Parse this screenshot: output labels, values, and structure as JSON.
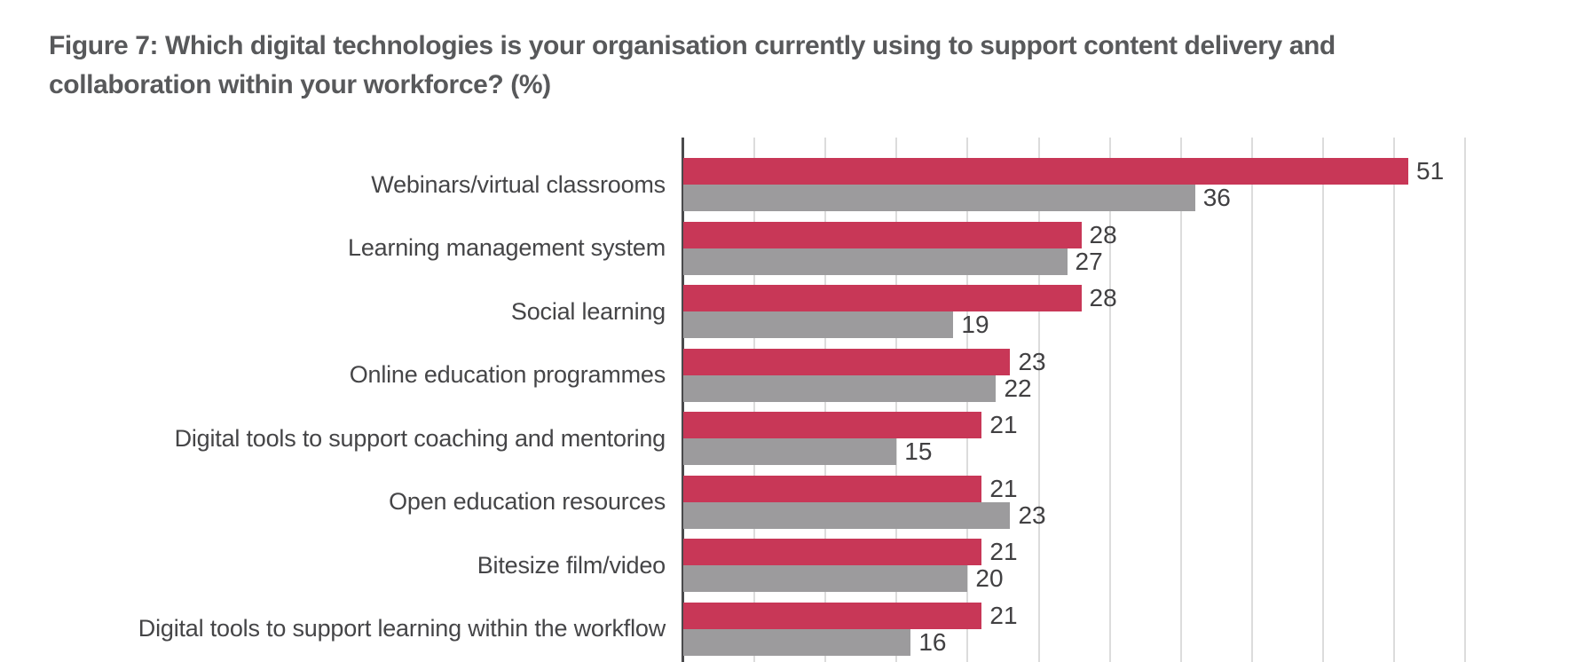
{
  "figure": {
    "title_line1": "Figure 7: Which digital technologies is your organisation currently using to support content delivery and",
    "title_line2": "collaboration within your workforce? (%)"
  },
  "chart_data": {
    "type": "bar",
    "orientation": "horizontal",
    "title": "Figure 7: Which digital technologies is your organisation currently using to support content delivery and collaboration within your workforce? (%)",
    "xlabel": "",
    "ylabel": "",
    "categories": [
      "Webinars/virtual classrooms",
      "Learning management system",
      "Social learning",
      "Online education programmes",
      "Digital tools to support coaching and mentoring",
      "Open education resources",
      "Bitesize film/video",
      "Digital tools to support learning within the workflow"
    ],
    "series": [
      {
        "name": "red",
        "color": "#c83757",
        "values": [
          51,
          28,
          28,
          23,
          21,
          21,
          21,
          21
        ]
      },
      {
        "name": "grey",
        "color": "#9c9b9d",
        "values": [
          36,
          27,
          19,
          22,
          15,
          23,
          20,
          16
        ]
      }
    ],
    "xlim": [
      0,
      55
    ],
    "gridline_interval": 5,
    "grid": "vertical",
    "legend_position": "none",
    "value_labels": "right of each bar end"
  },
  "colors": {
    "title_text": "#58595b",
    "label_text": "#454547",
    "value_text": "#414042",
    "gridline": "#dcdcdc",
    "axis_line": "#4a4a4c",
    "background": "#ffffff"
  }
}
